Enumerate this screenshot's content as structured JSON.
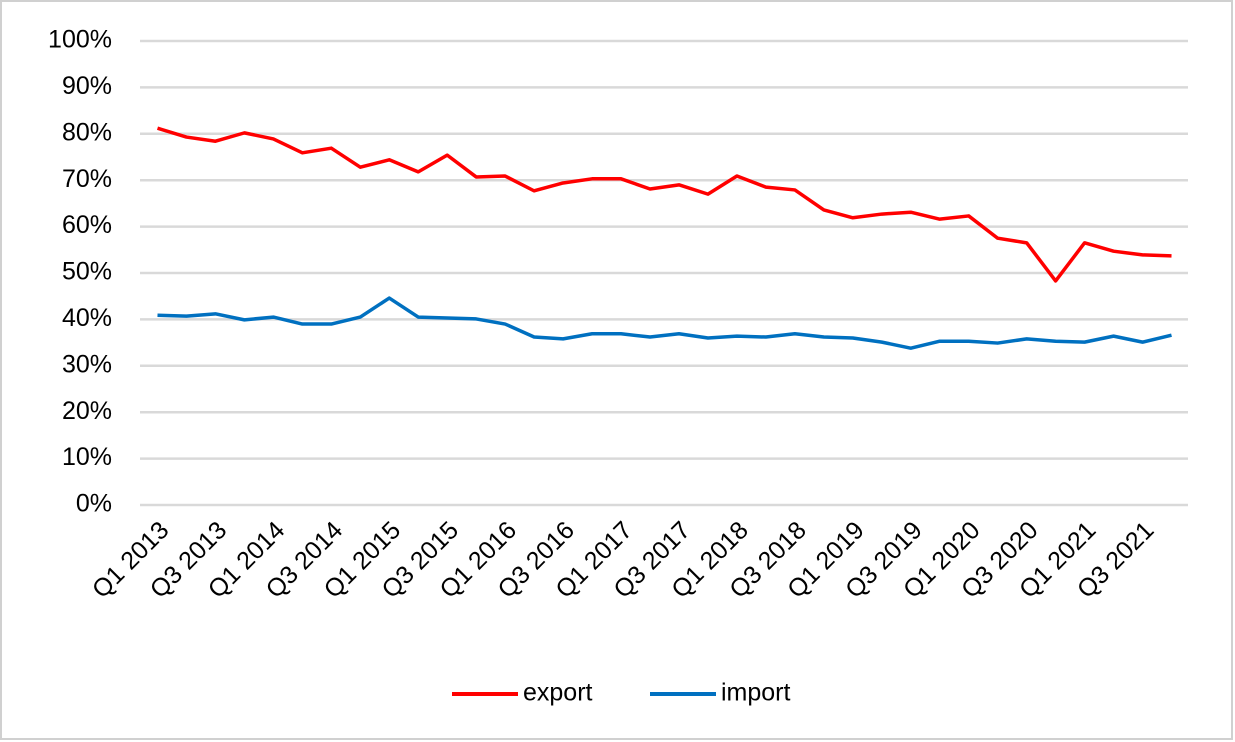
{
  "chart_data": {
    "type": "line",
    "categories": [
      "Q1 2013",
      null,
      "Q3 2013",
      null,
      "Q1 2014",
      null,
      "Q3 2014",
      null,
      "Q1 2015",
      null,
      "Q3 2015",
      null,
      "Q1 2016",
      null,
      "Q3 2016",
      null,
      "Q1 2017",
      null,
      "Q3 2017",
      null,
      "Q1 2018",
      null,
      "Q3 2018",
      null,
      "Q1 2019",
      null,
      "Q3 2019",
      null,
      "Q1 2020",
      null,
      "Q3 2020",
      null,
      "Q1 2021",
      null,
      "Q3 2021",
      null
    ],
    "series": [
      {
        "name": "export",
        "color": "#ff0000",
        "values": [
          81.2,
          79.3,
          78.4,
          80.2,
          78.9,
          75.9,
          76.9,
          72.8,
          74.4,
          71.8,
          75.4,
          70.7,
          70.9,
          67.7,
          69.4,
          70.3,
          70.3,
          68.1,
          69.0,
          67.0,
          70.9,
          68.5,
          67.9,
          63.6,
          61.9,
          62.7,
          63.1,
          61.6,
          62.3,
          57.5,
          56.5,
          48.3,
          56.5,
          54.7,
          53.9,
          53.7
        ]
      },
      {
        "name": "import",
        "color": "#0070c0",
        "values": [
          40.9,
          40.7,
          41.2,
          39.9,
          40.5,
          39.0,
          39.0,
          40.5,
          44.6,
          40.5,
          40.3,
          40.1,
          39.0,
          36.2,
          35.8,
          36.9,
          36.9,
          36.2,
          36.9,
          36.0,
          36.4,
          36.2,
          36.9,
          36.2,
          36.0,
          35.1,
          33.8,
          35.3,
          35.3,
          34.9,
          35.8,
          35.3,
          35.1,
          36.4,
          35.1,
          36.6
        ]
      }
    ],
    "ylim": [
      0,
      100
    ],
    "yticks": [
      {
        "value": 0,
        "label": "0%"
      },
      {
        "value": 10,
        "label": "10%"
      },
      {
        "value": 20,
        "label": "20%"
      },
      {
        "value": 30,
        "label": "30%"
      },
      {
        "value": 40,
        "label": "40%"
      },
      {
        "value": 50,
        "label": "50%"
      },
      {
        "value": 60,
        "label": "60%"
      },
      {
        "value": 70,
        "label": "70%"
      },
      {
        "value": 80,
        "label": "80%"
      },
      {
        "value": 90,
        "label": "90%"
      },
      {
        "value": 100,
        "label": "100%"
      }
    ],
    "grid": true,
    "legend": "bottom"
  }
}
